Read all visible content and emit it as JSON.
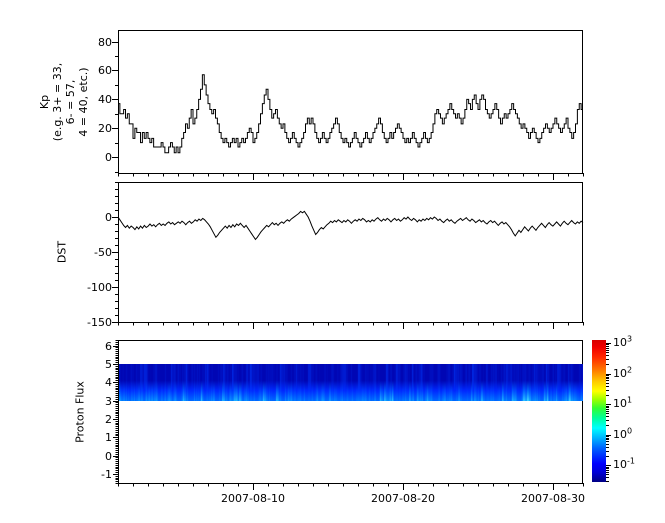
{
  "figure": {
    "background": "#ffffff",
    "axis_color": "#000000",
    "series_color": "#000000"
  },
  "x_axis": {
    "start": "2007-08-01",
    "end": "2007-09-01",
    "days": 31,
    "major_tick_days": [
      9,
      19,
      29
    ],
    "tick_labels": [
      "2007-08-10",
      "2007-08-20",
      "2007-08-30"
    ],
    "minor_every_days": 1
  },
  "chart_data": [
    {
      "id": "kp",
      "type": "line",
      "line_style": "step",
      "ylabel_lines": [
        "Kp",
        "(e.g. 3+ = 33,",
        "6- = 57,",
        "4 = 40, etc.)"
      ],
      "ylim": [
        -11,
        88
      ],
      "yticks": [
        0,
        20,
        40,
        60,
        80
      ],
      "y_minor_step": 10,
      "points_per_day": 8,
      "values": [
        37,
        30,
        30,
        33,
        27,
        30,
        23,
        23,
        13,
        20,
        17,
        17,
        10,
        17,
        13,
        17,
        13,
        10,
        13,
        7,
        7,
        7,
        7,
        10,
        7,
        3,
        3,
        7,
        10,
        7,
        3,
        7,
        3,
        7,
        13,
        17,
        23,
        20,
        27,
        33,
        23,
        27,
        33,
        40,
        47,
        57,
        50,
        43,
        37,
        33,
        30,
        33,
        27,
        23,
        17,
        13,
        10,
        13,
        10,
        7,
        10,
        13,
        10,
        13,
        7,
        10,
        13,
        10,
        13,
        17,
        20,
        17,
        10,
        13,
        17,
        23,
        30,
        37,
        43,
        47,
        40,
        33,
        27,
        30,
        33,
        27,
        23,
        20,
        23,
        17,
        13,
        10,
        13,
        17,
        13,
        10,
        7,
        10,
        13,
        17,
        23,
        27,
        23,
        27,
        23,
        17,
        13,
        10,
        13,
        17,
        13,
        10,
        13,
        17,
        20,
        23,
        27,
        23,
        17,
        13,
        10,
        13,
        10,
        7,
        10,
        13,
        17,
        13,
        10,
        7,
        10,
        13,
        17,
        13,
        10,
        13,
        17,
        20,
        23,
        27,
        23,
        17,
        13,
        10,
        13,
        17,
        13,
        17,
        20,
        23,
        20,
        17,
        13,
        10,
        13,
        10,
        13,
        17,
        13,
        10,
        7,
        10,
        13,
        17,
        13,
        10,
        13,
        17,
        23,
        30,
        33,
        30,
        27,
        23,
        27,
        30,
        33,
        37,
        33,
        30,
        27,
        30,
        27,
        23,
        27,
        33,
        40,
        37,
        33,
        40,
        43,
        37,
        33,
        40,
        43,
        40,
        33,
        30,
        27,
        30,
        33,
        37,
        33,
        27,
        23,
        27,
        30,
        27,
        30,
        33,
        37,
        33,
        30,
        27,
        23,
        20,
        23,
        20,
        17,
        13,
        17,
        20,
        17,
        13,
        10,
        13,
        17,
        20,
        23,
        20,
        17,
        20,
        23,
        27,
        23,
        20,
        17,
        20,
        23,
        27,
        20,
        17,
        13,
        17,
        23,
        33,
        37,
        33
      ]
    },
    {
      "id": "dst",
      "type": "line",
      "line_style": "linear",
      "ylabel": "DST",
      "ylim": [
        -150,
        50
      ],
      "yticks": [
        0,
        -50,
        -100,
        -150
      ],
      "y_minor_step": 10,
      "points_per_day": 8,
      "values": [
        0,
        -4,
        -8,
        -12,
        -15,
        -12,
        -16,
        -13,
        -15,
        -18,
        -14,
        -17,
        -13,
        -16,
        -12,
        -15,
        -13,
        -10,
        -13,
        -11,
        -14,
        -11,
        -9,
        -12,
        -10,
        -12,
        -9,
        -7,
        -10,
        -8,
        -11,
        -9,
        -7,
        -9,
        -6,
        -8,
        -11,
        -8,
        -6,
        -9,
        -7,
        -4,
        -6,
        -3,
        -5,
        -2,
        -4,
        -7,
        -10,
        -14,
        -19,
        -24,
        -29,
        -26,
        -22,
        -19,
        -16,
        -13,
        -16,
        -12,
        -15,
        -11,
        -14,
        -10,
        -12,
        -9,
        -12,
        -15,
        -12,
        -16,
        -20,
        -24,
        -28,
        -32,
        -29,
        -25,
        -21,
        -18,
        -15,
        -12,
        -14,
        -11,
        -8,
        -11,
        -9,
        -12,
        -9,
        -7,
        -9,
        -6,
        -4,
        -6,
        -3,
        -1,
        1,
        3,
        5,
        8,
        6,
        8,
        4,
        0,
        -6,
        -13,
        -19,
        -25,
        -22,
        -18,
        -15,
        -17,
        -14,
        -11,
        -9,
        -6,
        -8,
        -5,
        -7,
        -4,
        -6,
        -8,
        -5,
        -7,
        -4,
        -6,
        -9,
        -6,
        -4,
        -6,
        -3,
        -5,
        -2,
        -4,
        -7,
        -5,
        -7,
        -4,
        -6,
        -3,
        -1,
        -4,
        -6,
        -3,
        -5,
        -2,
        -4,
        -7,
        -4,
        -2,
        -5,
        -3,
        -6,
        -4,
        -1,
        -3,
        0,
        -3,
        -5,
        -2,
        -4,
        -7,
        -4,
        -6,
        -3,
        -5,
        -2,
        -4,
        -1,
        -3,
        0,
        -2,
        -5,
        -3,
        -6,
        -8,
        -5,
        -3,
        -6,
        -4,
        -7,
        -9,
        -6,
        -4,
        -2,
        -5,
        -3,
        -1,
        -4,
        -6,
        -3,
        -5,
        -8,
        -6,
        -4,
        -7,
        -5,
        -8,
        -10,
        -7,
        -5,
        -8,
        -6,
        -9,
        -12,
        -9,
        -7,
        -10,
        -8,
        -11,
        -14,
        -18,
        -23,
        -27,
        -23,
        -19,
        -22,
        -18,
        -14,
        -17,
        -20,
        -16,
        -13,
        -16,
        -19,
        -15,
        -12,
        -9,
        -12,
        -15,
        -11,
        -8,
        -11,
        -13,
        -10,
        -7,
        -10,
        -13,
        -9,
        -6,
        -9,
        -11,
        -8,
        -5,
        -8,
        -10,
        -7,
        -9,
        -6,
        -8
      ]
    },
    {
      "id": "proton_flux",
      "type": "heatmap",
      "ylabel": "Proton Flux",
      "ylim": [
        -1.5,
        6.3
      ],
      "yticks": [
        -1,
        0,
        1,
        2,
        3,
        4,
        5,
        6
      ],
      "y_minor_step": 0.1,
      "band": {
        "ymin": 3,
        "ymax": 5,
        "description": "vertically striated blue flux band, darker blue above, brighter blue toward lower edge",
        "value_log10_range": [
          -1.2,
          -0.4
        ]
      },
      "colorbar": {
        "scale": "log",
        "colormap": "jet",
        "tick_exponents": [
          3,
          2,
          1,
          0,
          -1
        ],
        "top_exponent": 3.1,
        "bottom_exponent": -1.55
      }
    }
  ]
}
